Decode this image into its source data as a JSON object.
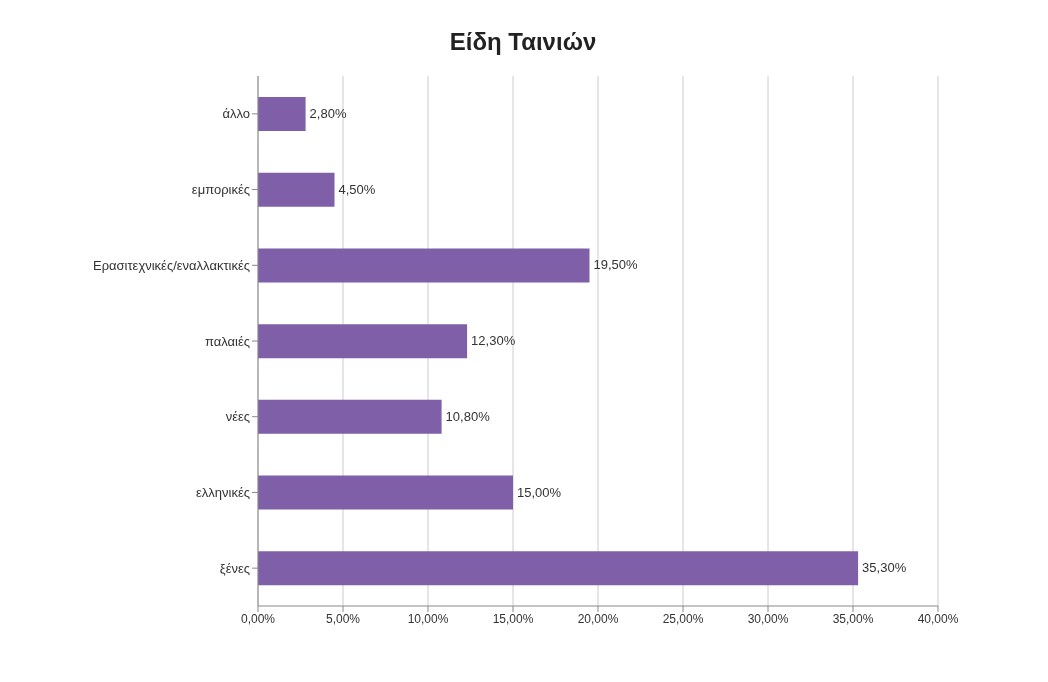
{
  "chart_data": {
    "type": "bar",
    "orientation": "horizontal",
    "title": "Είδη Ταινιών",
    "categories": [
      "άλλο",
      "εμπορικές",
      "Ερασιτεχνικές/εναλλακτικές",
      "παλαιές",
      "νέες",
      "ελληνικές",
      "ξένες"
    ],
    "values": [
      2.8,
      4.5,
      19.5,
      12.3,
      10.8,
      15.0,
      35.3
    ],
    "value_labels": [
      "2,80%",
      "4,50%",
      "19,50%",
      "12,30%",
      "10,80%",
      "15,00%",
      "35,30%"
    ],
    "color": "#7f5fa8",
    "xlim": [
      0,
      40
    ],
    "xticks": [
      {
        "value": 0,
        "label": "0,00%"
      },
      {
        "value": 5,
        "label": "5,00%"
      },
      {
        "value": 10,
        "label": "10,00%"
      },
      {
        "value": 15,
        "label": "15,00%"
      },
      {
        "value": 20,
        "label": "20,00%"
      },
      {
        "value": 25,
        "label": "25,00%"
      },
      {
        "value": 30,
        "label": "30,00%"
      },
      {
        "value": 35,
        "label": "35,00%"
      },
      {
        "value": 40,
        "label": "40,00%"
      }
    ],
    "grid": "x"
  }
}
